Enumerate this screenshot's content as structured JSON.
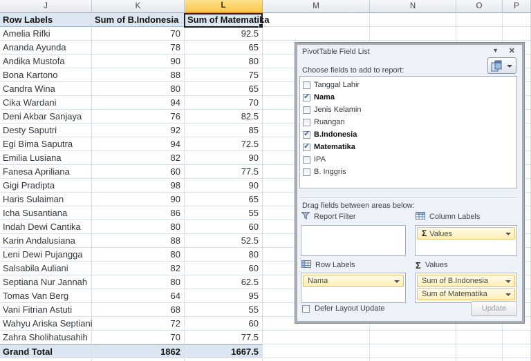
{
  "sheet": {
    "column_letters": [
      "J",
      "K",
      "L",
      "M",
      "N",
      "O",
      "P"
    ],
    "selected_column_letter": "L"
  },
  "pivot": {
    "header": {
      "row_labels": "Row Labels",
      "col1": "Sum of B.Indonesia",
      "col2": "Sum of Matematika"
    },
    "rows": [
      {
        "name": "Amelia Rifki",
        "bindonesia": "70",
        "matematika": "92.5"
      },
      {
        "name": "Ananda Ayunda",
        "bindonesia": "78",
        "matematika": "65"
      },
      {
        "name": "Andika Mustofa",
        "bindonesia": "90",
        "matematika": "80"
      },
      {
        "name": "Bona Kartono",
        "bindonesia": "88",
        "matematika": "75"
      },
      {
        "name": "Candra Wina",
        "bindonesia": "80",
        "matematika": "65"
      },
      {
        "name": "Cika Wardani",
        "bindonesia": "94",
        "matematika": "70"
      },
      {
        "name": "Deni Akbar Sanjaya",
        "bindonesia": "76",
        "matematika": "82.5"
      },
      {
        "name": "Desty Saputri",
        "bindonesia": "92",
        "matematika": "85"
      },
      {
        "name": "Egi Bima Saputra",
        "bindonesia": "94",
        "matematika": "72.5"
      },
      {
        "name": "Emilia Lusiana",
        "bindonesia": "82",
        "matematika": "90"
      },
      {
        "name": "Fanesa Apriliana",
        "bindonesia": "60",
        "matematika": "77.5"
      },
      {
        "name": "Gigi Pradipta",
        "bindonesia": "98",
        "matematika": "90"
      },
      {
        "name": "Haris Sulaiman",
        "bindonesia": "90",
        "matematika": "65"
      },
      {
        "name": "Icha Susantiana",
        "bindonesia": "86",
        "matematika": "55"
      },
      {
        "name": "Indah Dewi Cantika",
        "bindonesia": "80",
        "matematika": "60"
      },
      {
        "name": "Karin Andalusiana",
        "bindonesia": "88",
        "matematika": "52.5"
      },
      {
        "name": "Leni Dewi Pujangga",
        "bindonesia": "80",
        "matematika": "80"
      },
      {
        "name": "Salsabila Auliani",
        "bindonesia": "82",
        "matematika": "60"
      },
      {
        "name": "Septiana Nur Jannah",
        "bindonesia": "80",
        "matematika": "62.5"
      },
      {
        "name": "Tomas Van Berg",
        "bindonesia": "64",
        "matematika": "95"
      },
      {
        "name": "Vani Fitrian Astuti",
        "bindonesia": "68",
        "matematika": "55"
      },
      {
        "name": "Wahyu Ariska Septiani",
        "bindonesia": "72",
        "matematika": "60"
      },
      {
        "name": "Zahra Sholihatusahih",
        "bindonesia": "70",
        "matematika": "77.5"
      }
    ],
    "grand_total": {
      "label": "Grand Total",
      "bindonesia": "1862",
      "matematika": "1667.5"
    }
  },
  "field_list": {
    "title": "PivotTable Field List",
    "choose_fields_label": "Choose fields to add to report:",
    "fields": [
      {
        "label": "Tanggal Lahir",
        "checked": false
      },
      {
        "label": "Nama",
        "checked": true
      },
      {
        "label": "Jenis Kelamin",
        "checked": false
      },
      {
        "label": "Ruangan",
        "checked": false
      },
      {
        "label": "B.Indonesia",
        "checked": true
      },
      {
        "label": "Matematika",
        "checked": true
      },
      {
        "label": "IPA",
        "checked": false
      },
      {
        "label": "B. Inggris",
        "checked": false
      }
    ],
    "drag_fields_label": "Drag fields between areas below:",
    "areas": {
      "report_filter": {
        "label": "Report Filter",
        "items": []
      },
      "column_labels": {
        "label": "Column Labels",
        "items": [
          {
            "sigma": true,
            "label": "Values"
          }
        ]
      },
      "row_labels": {
        "label": "Row Labels",
        "items": [
          {
            "sigma": false,
            "label": "Nama"
          }
        ]
      },
      "values": {
        "label": "Values",
        "items": [
          {
            "sigma": false,
            "label": "Sum of B.Indonesia"
          },
          {
            "sigma": false,
            "label": "Sum of Matematika"
          }
        ]
      }
    },
    "defer_label": "Defer Layout Update",
    "update_label": "Update"
  },
  "icons": {
    "sigma": "Σ",
    "close": "✕",
    "pane_menu": "▼",
    "check": "✓"
  },
  "colors": {
    "selected_column_header": "#fac84e",
    "pivot_header_fill": "#dce6f1",
    "grand_total_fill": "#dce6f1",
    "field_pill_fill": "#ffeeb4",
    "gridline": "#d9dfe8"
  }
}
